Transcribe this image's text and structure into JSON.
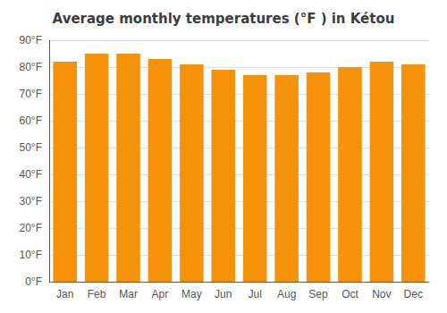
{
  "chart_data": {
    "type": "bar",
    "title": "Average monthly temperatures (°F ) in Kétou",
    "categories": [
      "Jan",
      "Feb",
      "Mar",
      "Apr",
      "May",
      "Jun",
      "Jul",
      "Aug",
      "Sep",
      "Oct",
      "Nov",
      "Dec"
    ],
    "values": [
      82,
      85,
      85,
      83,
      81,
      79,
      77,
      77,
      78,
      80,
      82,
      81
    ],
    "color": "#F5920A",
    "ylim": [
      0,
      90
    ],
    "yticks": [
      {
        "value": 0,
        "label": "0°F"
      },
      {
        "value": 10,
        "label": "10°F"
      },
      {
        "value": 20,
        "label": "20°F"
      },
      {
        "value": 30,
        "label": "30°F"
      },
      {
        "value": 40,
        "label": "40°F"
      },
      {
        "value": 50,
        "label": "50°F"
      },
      {
        "value": 60,
        "label": "60°F"
      },
      {
        "value": 70,
        "label": "70°F"
      },
      {
        "value": 80,
        "label": "80°F"
      },
      {
        "value": 90,
        "label": "90°F"
      }
    ],
    "grid": true
  }
}
